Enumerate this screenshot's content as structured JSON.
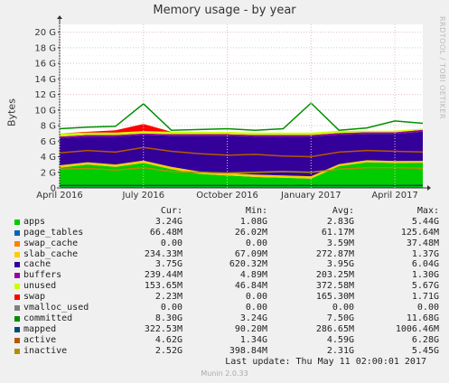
{
  "title": "Memory usage - by year",
  "watermark": "RRDTOOL / TOBI OETIKER",
  "chart_data": {
    "type": "area",
    "title": "Memory usage - by year",
    "ylabel": "Bytes",
    "ylim": [
      0,
      21
    ],
    "yticks": [
      "0",
      "2 G",
      "4 G",
      "6 G",
      "8 G",
      "10 G",
      "12 G",
      "14 G",
      "16 G",
      "18 G",
      "20 G"
    ],
    "xticks": [
      "April 2016",
      "July 2016",
      "October 2016",
      "January 2017",
      "April 2017"
    ],
    "x": [
      "2016-04",
      "2016-05",
      "2016-06",
      "2016-07",
      "2016-08",
      "2016-09",
      "2016-10",
      "2016-11",
      "2016-12",
      "2017-01",
      "2017-02",
      "2017-03",
      "2017-04",
      "2017-05"
    ],
    "series": [
      {
        "name": "apps",
        "values": [
          2.6,
          3.0,
          2.7,
          3.2,
          2.4,
          1.8,
          1.6,
          1.4,
          1.3,
          1.2,
          2.8,
          3.3,
          3.2,
          3.24
        ]
      },
      {
        "name": "swap_cache",
        "values": [
          0,
          0,
          0,
          0,
          0,
          0,
          0,
          0,
          0,
          0,
          0,
          0,
          0,
          0
        ]
      },
      {
        "name": "slab_cache",
        "values": [
          0.3,
          0.3,
          0.3,
          0.3,
          0.3,
          0.3,
          0.3,
          0.3,
          0.3,
          0.3,
          0.25,
          0.25,
          0.25,
          0.23
        ]
      },
      {
        "name": "cache",
        "values": [
          3.5,
          3.3,
          3.6,
          3.3,
          4.0,
          4.6,
          4.8,
          4.9,
          5.0,
          5.1,
          3.8,
          3.4,
          3.5,
          3.75
        ]
      },
      {
        "name": "buffers",
        "values": [
          0.2,
          0.2,
          0.2,
          0.2,
          0.2,
          0.2,
          0.2,
          0.2,
          0.2,
          0.2,
          0.2,
          0.2,
          0.2,
          0.24
        ]
      },
      {
        "name": "unused",
        "values": [
          0.4,
          0.3,
          0.3,
          0.3,
          0.3,
          0.3,
          0.3,
          0.3,
          0.3,
          0.3,
          0.3,
          0.2,
          0.2,
          0.15
        ]
      },
      {
        "name": "swap",
        "values": [
          0.0,
          0.1,
          0.3,
          0.9,
          0.0,
          0.0,
          0.0,
          0.0,
          0.0,
          0.0,
          0.0,
          0.0,
          0.0,
          0.0
        ]
      },
      {
        "name": "committed",
        "values": [
          7.6,
          7.8,
          7.9,
          10.8,
          7.4,
          7.5,
          7.6,
          7.4,
          7.6,
          10.9,
          7.4,
          7.7,
          8.6,
          8.3
        ]
      },
      {
        "name": "mapped",
        "values": [
          0.3,
          0.3,
          0.3,
          0.3,
          0.3,
          0.3,
          0.3,
          0.3,
          0.3,
          0.3,
          0.3,
          0.3,
          0.3,
          0.32
        ]
      },
      {
        "name": "active",
        "values": [
          4.5,
          4.8,
          4.6,
          5.2,
          4.7,
          4.4,
          4.2,
          4.3,
          4.1,
          4.0,
          4.6,
          4.8,
          4.7,
          4.62
        ]
      },
      {
        "name": "inactive",
        "values": [
          2.4,
          2.5,
          2.3,
          2.6,
          2.1,
          2.0,
          1.9,
          2.0,
          2.1,
          2.0,
          2.4,
          2.6,
          2.6,
          2.52
        ]
      }
    ]
  },
  "legend": {
    "headers": {
      "cur": "Cur:",
      "min": "Min:",
      "avg": "Avg:",
      "max": "Max:"
    },
    "rows": [
      {
        "name": "apps",
        "color": "#00cc00",
        "cur": "3.24G",
        "min": "1.08G",
        "avg": "2.83G",
        "max": "5.44G"
      },
      {
        "name": "page_tables",
        "color": "#0066b3",
        "cur": "66.48M",
        "min": "26.02M",
        "avg": "61.17M",
        "max": "125.64M"
      },
      {
        "name": "swap_cache",
        "color": "#ff8000",
        "cur": "0.00",
        "min": "0.00",
        "avg": "3.59M",
        "max": "37.48M"
      },
      {
        "name": "slab_cache",
        "color": "#ffcc00",
        "cur": "234.33M",
        "min": "67.09M",
        "avg": "272.87M",
        "max": "1.37G"
      },
      {
        "name": "cache",
        "color": "#330099",
        "cur": "3.75G",
        "min": "620.32M",
        "avg": "3.95G",
        "max": "6.04G"
      },
      {
        "name": "buffers",
        "color": "#990099",
        "cur": "239.44M",
        "min": "4.89M",
        "avg": "203.25M",
        "max": "1.30G"
      },
      {
        "name": "unused",
        "color": "#ccff00",
        "cur": "153.65M",
        "min": "46.84M",
        "avg": "372.58M",
        "max": "5.67G"
      },
      {
        "name": "swap",
        "color": "#ff0000",
        "cur": "2.23M",
        "min": "0.00",
        "avg": "165.30M",
        "max": "1.71G"
      },
      {
        "name": "vmalloc_used",
        "color": "#808080",
        "cur": "0.00",
        "min": "0.00",
        "avg": "0.00",
        "max": "0.00"
      },
      {
        "name": "committed",
        "color": "#008f00",
        "cur": "8.30G",
        "min": "3.24G",
        "avg": "7.50G",
        "max": "11.68G"
      },
      {
        "name": "mapped",
        "color": "#00487d",
        "cur": "322.53M",
        "min": "90.20M",
        "avg": "286.65M",
        "max": "1006.46M"
      },
      {
        "name": "active",
        "color": "#b35a00",
        "cur": "4.62G",
        "min": "1.34G",
        "avg": "4.59G",
        "max": "6.28G"
      },
      {
        "name": "inactive",
        "color": "#b38f00",
        "cur": "2.52G",
        "min": "398.84M",
        "avg": "2.31G",
        "max": "5.45G"
      }
    ]
  },
  "last_update": "Last update:  Thu May 11 02:00:01 2017",
  "version": "Munin 2.0.33"
}
